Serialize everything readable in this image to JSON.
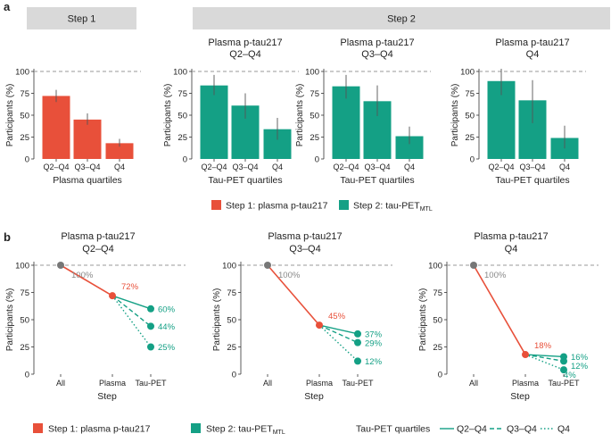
{
  "panel_labels": [
    "a",
    "b"
  ],
  "step_headers": [
    "Step 1",
    "Step 2"
  ],
  "colors": {
    "step1": "#e8503a",
    "step2": "#14a085",
    "header_bg": "#d9d9d9",
    "axis": "#333333",
    "text": "#222222",
    "dashed_ref": "#999999",
    "gray_label": "#888888"
  },
  "legend": {
    "step1": "Step 1: plasma p-tau217",
    "step2_prefix": "Step 2: tau-PET",
    "step2_sub": "MTL",
    "quartiles_title": "Tau-PET quartiles",
    "line_q2": "Q2–Q4",
    "line_q3": "Q3–Q4",
    "line_q4": "Q4"
  },
  "chart_data": [
    {
      "type": "bar",
      "panel": "a",
      "step": "Step 1",
      "title": "",
      "categories": [
        "Q2–Q4",
        "Q3–Q4",
        "Q4"
      ],
      "values": [
        72,
        45,
        18
      ],
      "errors_low": [
        65,
        39,
        14
      ],
      "errors_high": [
        79,
        52,
        23
      ],
      "xlabel": "Plasma quartiles",
      "ylabel": "Participants (%)",
      "ylim": [
        0,
        100
      ],
      "yticks": [
        "0",
        "25",
        "50",
        "75",
        "100"
      ],
      "color": "step1",
      "ref_line": 100
    },
    {
      "type": "bar",
      "panel": "a",
      "step": "Step 2",
      "title": [
        "Plasma p-tau217",
        "Q2–Q4"
      ],
      "categories": [
        "Q2–Q4",
        "Q3–Q4",
        "Q4"
      ],
      "values": [
        84,
        61,
        34
      ],
      "errors_low": [
        73,
        46,
        22
      ],
      "errors_high": [
        96,
        75,
        47
      ],
      "xlabel": "Tau-PET quartiles",
      "ylabel": "Participants (%)",
      "ylim": [
        0,
        100
      ],
      "yticks": [
        "0",
        "25",
        "50",
        "75",
        "100"
      ],
      "color": "step2",
      "ref_line": 100
    },
    {
      "type": "bar",
      "panel": "a",
      "step": "Step 2",
      "title": [
        "Plasma p-tau217",
        "Q3–Q4"
      ],
      "categories": [
        "Q2–Q4",
        "Q3–Q4",
        "Q4"
      ],
      "values": [
        83,
        66,
        26
      ],
      "errors_low": [
        69,
        49,
        17
      ],
      "errors_high": [
        96,
        84,
        37
      ],
      "xlabel": "Tau-PET quartiles",
      "ylabel": "Participants (%)",
      "ylim": [
        0,
        100
      ],
      "yticks": [
        "0",
        "25",
        "50",
        "75",
        "100"
      ],
      "color": "step2",
      "ref_line": 100
    },
    {
      "type": "bar",
      "panel": "a",
      "step": "Step 2",
      "title": [
        "Plasma p-tau217",
        "Q4"
      ],
      "categories": [
        "Q2–Q4",
        "Q3–Q4",
        "Q4"
      ],
      "values": [
        89,
        67,
        24
      ],
      "errors_low": [
        73,
        41,
        12
      ],
      "errors_high": [
        103,
        90,
        38
      ],
      "xlabel": "Tau-PET quartiles",
      "ylabel": "Participants (%)",
      "ylim": [
        0,
        100
      ],
      "yticks": [
        "0",
        "25",
        "50",
        "75",
        "100"
      ],
      "color": "step2",
      "ref_line": 100
    },
    {
      "type": "line",
      "panel": "b",
      "title": [
        "Plasma p-tau217",
        "Q2–Q4"
      ],
      "categories": [
        "All",
        "Plasma",
        "Tau-PET"
      ],
      "all_value": 100,
      "all_label": "100%",
      "plasma_value": 72,
      "plasma_label": "72%",
      "tau_series": [
        {
          "name": "Q2–Q4",
          "value": 60,
          "label": "60%"
        },
        {
          "name": "Q3–Q4",
          "value": 44,
          "label": "44%"
        },
        {
          "name": "Q4",
          "value": 25,
          "label": "25%"
        }
      ],
      "xlabel": "Step",
      "ylabel": "Participants (%)",
      "ylim": [
        0,
        100
      ],
      "yticks": [
        "0",
        "25",
        "50",
        "75",
        "100"
      ],
      "ref_line": 100
    },
    {
      "type": "line",
      "panel": "b",
      "title": [
        "Plasma p-tau217",
        "Q3–Q4"
      ],
      "categories": [
        "All",
        "Plasma",
        "Tau-PET"
      ],
      "all_value": 100,
      "all_label": "100%",
      "plasma_value": 45,
      "plasma_label": "45%",
      "tau_series": [
        {
          "name": "Q2–Q4",
          "value": 37,
          "label": "37%"
        },
        {
          "name": "Q3–Q4",
          "value": 29,
          "label": "29%"
        },
        {
          "name": "Q4",
          "value": 12,
          "label": "12%"
        }
      ],
      "xlabel": "Step",
      "ylabel": "Participants (%)",
      "ylim": [
        0,
        100
      ],
      "yticks": [
        "0",
        "25",
        "50",
        "75",
        "100"
      ],
      "ref_line": 100
    },
    {
      "type": "line",
      "panel": "b",
      "title": [
        "Plasma p-tau217",
        "Q4"
      ],
      "categories": [
        "All",
        "Plasma",
        "Tau-PET"
      ],
      "all_value": 100,
      "all_label": "100%",
      "plasma_value": 18,
      "plasma_label": "18%",
      "tau_series": [
        {
          "name": "Q2–Q4",
          "value": 16,
          "label": "16%"
        },
        {
          "name": "Q3–Q4",
          "value": 12,
          "label": "12%"
        },
        {
          "name": "Q4",
          "value": 4,
          "label": "4%"
        }
      ],
      "xlabel": "Step",
      "ylabel": "Participants (%)",
      "ylim": [
        0,
        100
      ],
      "yticks": [
        "0",
        "25",
        "50",
        "75",
        "100"
      ],
      "ref_line": 100
    }
  ]
}
